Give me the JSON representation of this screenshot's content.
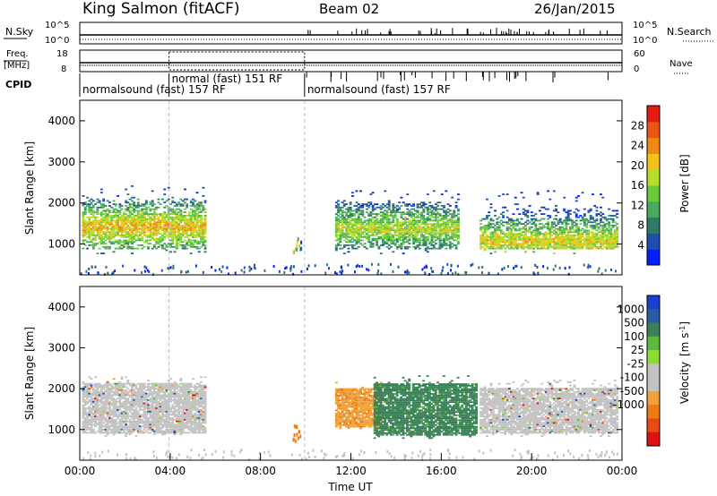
{
  "header": {
    "station": "King Salmon (fitACF)",
    "beam": "Beam 02",
    "date": "26/Jan/2015"
  },
  "status_panels": {
    "nsky_label": "N.Sky",
    "nsky_ticks": [
      "10^5",
      "10^0"
    ],
    "nsearch_label": "N.Search",
    "nsearch_ticks": [
      "10^5",
      "10^0"
    ],
    "freq_label": "Freq.",
    "freq_unit": "[MHz]",
    "freq_ticks": [
      "18",
      "8"
    ],
    "nave_label": "Nave",
    "nave_ticks": [
      "60",
      "0"
    ],
    "cpid_label": "CPID",
    "cpid_segments": [
      {
        "label": "normalsound (fast) 157 RF",
        "start_h": 0,
        "end_h": 3.95
      },
      {
        "label": "normal (fast) 151 RF",
        "start_h": 3.95,
        "end_h": 9.95
      },
      {
        "label": "normalsound (fast) 157 RF",
        "start_h": 9.95,
        "end_h": 24
      }
    ]
  },
  "colors": {
    "power_scale": [
      "#0022ff",
      "#1e4fb0",
      "#2f7a66",
      "#49a860",
      "#6acc3a",
      "#b6dd2c",
      "#f3c21a",
      "#f08a12",
      "#ea5712",
      "#e41c12"
    ],
    "velocity_scale": [
      "#1c3fcf",
      "#2a5ca2",
      "#3a8059",
      "#5cb83f",
      "#8ddc36",
      "#c3c3c3",
      "#c3c3c3",
      "#f0a23a",
      "#ef7a12",
      "#e94a13",
      "#e20f10"
    ],
    "ground_scatter": "#c3c3c3"
  },
  "chart_data": [
    {
      "type": "heatmap",
      "panel": "power",
      "ylabel": "Slant Range [km]",
      "xlabel": "",
      "ylim": [
        250,
        4500
      ],
      "xlim": [
        0,
        24
      ],
      "yticks": [
        1000,
        2000,
        3000,
        4000
      ],
      "colorbar": {
        "label": "Power [dB]",
        "range": [
          0,
          32
        ],
        "ticks": [
          4,
          8,
          12,
          16,
          20,
          24,
          28
        ]
      },
      "scatter_regions": [
        {
          "t0": 0.1,
          "t1": 5.5,
          "r_low": 850,
          "r_high": 2100,
          "r_peak": 1400,
          "peak_value": 22
        },
        {
          "t0": 11.3,
          "t1": 16.7,
          "r_low": 850,
          "r_high": 2000,
          "r_peak": 1350,
          "peak_value": 18
        },
        {
          "t0": 17.7,
          "t1": 23.8,
          "r_low": 850,
          "r_high": 2000,
          "r_peak": 1050,
          "peak_value": 20
        }
      ]
    },
    {
      "type": "heatmap",
      "panel": "velocity",
      "ylabel": "Slant Range [km]",
      "xlabel": "Time UT",
      "ylim": [
        250,
        4500
      ],
      "xlim": [
        0,
        24
      ],
      "yticks": [
        1000,
        2000,
        3000,
        4000
      ],
      "xticks": [
        "00:00",
        "04:00",
        "08:00",
        "12:00",
        "16:00",
        "20:00",
        "00:00"
      ],
      "colorbar": {
        "label": "Velocity",
        "unit": "[m s",
        "unit_sup": "-1",
        "unit_end": "]",
        "ticks": [
          "1000",
          "500",
          "100",
          "25",
          "-25",
          "-100",
          "-500",
          "-1000"
        ]
      },
      "scatter_regions": [
        {
          "t0": 0.1,
          "t1": 5.5,
          "r_low": 900,
          "r_high": 2100,
          "velocity": "ground"
        },
        {
          "t0": 11.3,
          "t1": 13.3,
          "r_low": 1050,
          "r_high": 2000,
          "velocity": -400
        },
        {
          "t0": 13.0,
          "t1": 17.5,
          "r_low": 850,
          "r_high": 2100,
          "velocity": 150
        },
        {
          "t0": 17.7,
          "t1": 23.8,
          "r_low": 900,
          "r_high": 2000,
          "velocity": "ground"
        }
      ]
    }
  ]
}
